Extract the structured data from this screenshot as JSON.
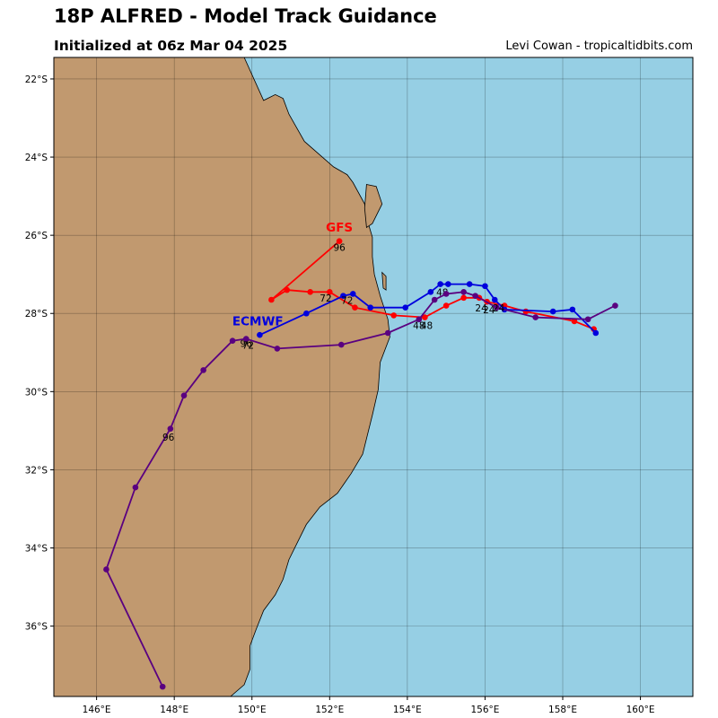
{
  "header": {
    "title": "18P ALFRED - Model Track Guidance",
    "subtitle": "Initialized at 06z Mar 04 2025",
    "credit": "Levi Cowan - tropicaltidbits.com"
  },
  "colors": {
    "ocean": "#96cfe4",
    "land": "#c1996f",
    "gfs": "#ff0000",
    "ecmwf": "#0000dd",
    "ensemble": "#5a0080"
  },
  "map": {
    "lon_range": [
      144.9,
      161.35
    ],
    "lat_range": [
      -37.8,
      -21.45
    ],
    "lon_ticks": [
      {
        "value": 146,
        "label": "146°E"
      },
      {
        "value": 148,
        "label": "148°E"
      },
      {
        "value": 150,
        "label": "150°E"
      },
      {
        "value": 152,
        "label": "152°E"
      },
      {
        "value": 154,
        "label": "154°E"
      },
      {
        "value": 156,
        "label": "156°E"
      },
      {
        "value": 158,
        "label": "158°E"
      },
      {
        "value": 160,
        "label": "160°E"
      }
    ],
    "lat_ticks": [
      {
        "value": -22,
        "label": "22°S"
      },
      {
        "value": -24,
        "label": "24°S"
      },
      {
        "value": -26,
        "label": "26°S"
      },
      {
        "value": -28,
        "label": "28°S"
      },
      {
        "value": -30,
        "label": "30°S"
      },
      {
        "value": -32,
        "label": "32°S"
      },
      {
        "value": -34,
        "label": "34°S"
      },
      {
        "value": -36,
        "label": "36°S"
      }
    ],
    "grid": true
  },
  "chart_data": {
    "type": "scatter",
    "series": [
      {
        "name": "GFS",
        "color": "#ff0000",
        "points": [
          [
            158.8,
            -28.4
          ],
          [
            158.3,
            -28.2
          ],
          [
            157.05,
            -27.95
          ],
          [
            156.5,
            -27.8
          ],
          [
            156.05,
            -27.7
          ],
          [
            155.85,
            -27.6
          ],
          [
            155.45,
            -27.6
          ],
          [
            155.0,
            -27.8
          ],
          [
            154.45,
            -28.1
          ],
          [
            153.65,
            -28.05
          ],
          [
            152.65,
            -27.85
          ],
          [
            152.0,
            -27.45
          ],
          [
            151.5,
            -27.45
          ],
          [
            150.9,
            -27.4
          ],
          [
            150.5,
            -27.65
          ],
          [
            152.25,
            -26.15
          ]
        ],
        "labels": [
          {
            "text": "24",
            "lon": 155.9,
            "lat": -27.95
          },
          {
            "text": "48",
            "lon": 154.5,
            "lat": -28.4
          },
          {
            "text": "72",
            "lon": 151.9,
            "lat": -27.7
          },
          {
            "text": "96",
            "lon": 152.25,
            "lat": -26.4
          }
        ]
      },
      {
        "name": "ECMWF",
        "color": "#0000dd",
        "points": [
          [
            158.85,
            -28.5
          ],
          [
            158.25,
            -27.9
          ],
          [
            157.75,
            -27.95
          ],
          [
            156.5,
            -27.9
          ],
          [
            156.25,
            -27.65
          ],
          [
            156.0,
            -27.3
          ],
          [
            155.6,
            -27.25
          ],
          [
            155.05,
            -27.25
          ],
          [
            154.85,
            -27.25
          ],
          [
            154.6,
            -27.45
          ],
          [
            153.95,
            -27.85
          ],
          [
            153.05,
            -27.85
          ],
          [
            152.6,
            -27.5
          ],
          [
            152.35,
            -27.55
          ],
          [
            151.4,
            -28.0
          ],
          [
            150.2,
            -28.55
          ]
        ],
        "labels": [
          {
            "text": "24",
            "lon": 156.1,
            "lat": -28.0
          },
          {
            "text": "48",
            "lon": 154.9,
            "lat": -27.55
          },
          {
            "text": "72",
            "lon": 152.45,
            "lat": -27.75
          },
          {
            "text": "96",
            "lon": 149.85,
            "lat": -28.85
          }
        ]
      },
      {
        "name": "",
        "color": "#5a0080",
        "points": [
          [
            159.35,
            -27.8
          ],
          [
            158.65,
            -28.15
          ],
          [
            157.3,
            -28.1
          ],
          [
            156.3,
            -27.85
          ],
          [
            155.75,
            -27.55
          ],
          [
            155.45,
            -27.45
          ],
          [
            155.0,
            -27.5
          ],
          [
            154.7,
            -27.65
          ],
          [
            154.3,
            -28.15
          ],
          [
            153.5,
            -28.5
          ],
          [
            152.3,
            -28.8
          ],
          [
            150.65,
            -28.9
          ],
          [
            149.85,
            -28.65
          ],
          [
            149.5,
            -28.7
          ],
          [
            148.75,
            -29.45
          ],
          [
            148.25,
            -30.1
          ],
          [
            147.9,
            -30.95
          ],
          [
            147.0,
            -32.45
          ],
          [
            146.25,
            -34.55
          ],
          [
            147.7,
            -37.55
          ]
        ],
        "labels": [
          {
            "text": "24",
            "lon": 156.35,
            "lat": -27.95
          },
          {
            "text": "48",
            "lon": 154.3,
            "lat": -28.4
          },
          {
            "text": "72",
            "lon": 149.9,
            "lat": -28.9
          },
          {
            "text": "96",
            "lon": 147.85,
            "lat": -31.25
          }
        ]
      }
    ],
    "model_labels": [
      {
        "text": "GFS",
        "color": "#ff0000",
        "lon": 152.25,
        "lat": -25.9
      },
      {
        "text": "ECMWF",
        "color": "#0000dd",
        "lon": 150.15,
        "lat": -28.3
      }
    ],
    "xlim": [
      144.9,
      161.35
    ],
    "ylim": [
      -37.8,
      -21.45
    ]
  },
  "coastline": [
    [
      149.8,
      -21.45
    ],
    [
      150.3,
      -22.55
    ],
    [
      150.6,
      -22.4
    ],
    [
      150.8,
      -22.5
    ],
    [
      150.95,
      -22.9
    ],
    [
      151.35,
      -23.6
    ],
    [
      152.1,
      -24.25
    ],
    [
      152.45,
      -24.45
    ],
    [
      152.6,
      -24.65
    ],
    [
      152.9,
      -25.2
    ],
    [
      152.95,
      -25.55
    ],
    [
      153.1,
      -26.05
    ],
    [
      153.1,
      -26.55
    ],
    [
      153.15,
      -27.0
    ],
    [
      153.3,
      -27.55
    ],
    [
      153.5,
      -28.15
    ],
    [
      153.55,
      -28.6
    ],
    [
      153.3,
      -29.25
    ],
    [
      153.25,
      -29.95
    ],
    [
      153.1,
      -30.6
    ],
    [
      152.95,
      -31.2
    ],
    [
      152.85,
      -31.6
    ],
    [
      152.55,
      -32.1
    ],
    [
      152.2,
      -32.6
    ],
    [
      151.75,
      -32.95
    ],
    [
      151.4,
      -33.4
    ],
    [
      151.15,
      -33.9
    ],
    [
      150.95,
      -34.3
    ],
    [
      150.8,
      -34.8
    ],
    [
      150.6,
      -35.2
    ],
    [
      150.3,
      -35.6
    ],
    [
      150.1,
      -36.1
    ],
    [
      149.95,
      -36.5
    ],
    [
      149.95,
      -37.1
    ],
    [
      149.8,
      -37.5
    ],
    [
      149.45,
      -37.8
    ]
  ],
  "fraser_island": [
    [
      152.95,
      -24.7
    ],
    [
      153.2,
      -24.75
    ],
    [
      153.35,
      -25.2
    ],
    [
      153.1,
      -25.7
    ],
    [
      152.95,
      -25.8
    ],
    [
      152.9,
      -25.3
    ],
    [
      152.95,
      -24.7
    ]
  ],
  "moreton_island": [
    [
      153.35,
      -26.95
    ],
    [
      153.45,
      -27.05
    ],
    [
      153.45,
      -27.4
    ],
    [
      153.38,
      -27.35
    ],
    [
      153.35,
      -26.95
    ]
  ]
}
